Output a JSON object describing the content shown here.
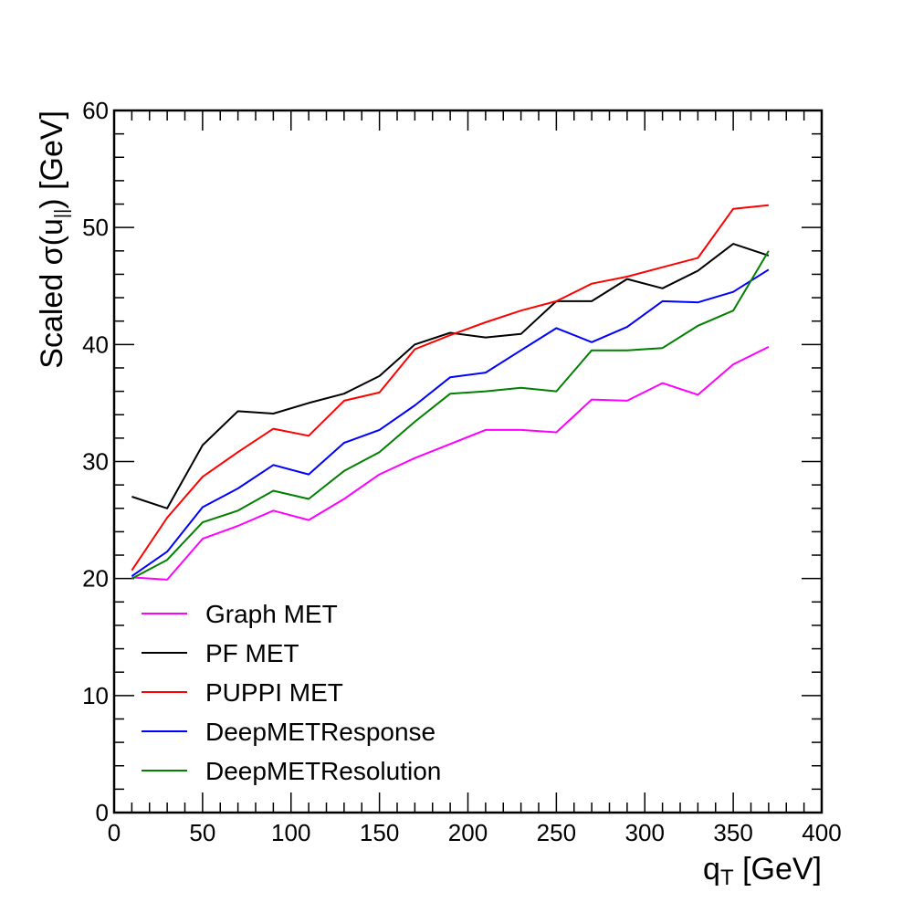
{
  "chart_data": {
    "type": "line",
    "xlabel": "q",
    "xlabel_sub": "T",
    "xlabel_unit": " [GeV]",
    "ylabel": "Scaled σ(u",
    "ylabel_sub": "||",
    "ylabel_unit": ") [GeV]",
    "xlim": [
      0,
      400
    ],
    "ylim": [
      0,
      60
    ],
    "xticks": [
      0,
      50,
      100,
      150,
      200,
      250,
      300,
      350,
      400
    ],
    "yticks": [
      0,
      10,
      20,
      30,
      40,
      50,
      60
    ],
    "legend_position": "bottom-left",
    "grid": false,
    "x": [
      10,
      30,
      50,
      70,
      90,
      110,
      130,
      150,
      170,
      190,
      210,
      230,
      250,
      270,
      290,
      310,
      330,
      350,
      370
    ],
    "series": [
      {
        "name": "Graph MET",
        "color": "#ff00ff",
        "values": [
          20.1,
          19.9,
          23.4,
          24.5,
          25.8,
          25.0,
          26.8,
          28.9,
          30.3,
          31.5,
          32.7,
          32.7,
          32.5,
          35.3,
          35.2,
          36.7,
          35.7,
          38.3,
          39.8
        ]
      },
      {
        "name": "PF MET",
        "color": "#000000",
        "values": [
          27.0,
          26.0,
          31.4,
          34.3,
          34.1,
          35.0,
          35.8,
          37.3,
          40.0,
          41.0,
          40.6,
          40.9,
          43.7,
          43.7,
          45.6,
          44.8,
          46.3,
          48.6,
          47.6
        ]
      },
      {
        "name": "PUPPI MET",
        "color": "#ff0000",
        "values": [
          20.7,
          25.2,
          28.7,
          30.8,
          32.8,
          32.2,
          35.2,
          35.9,
          39.6,
          40.8,
          41.9,
          42.9,
          43.7,
          45.2,
          45.8,
          46.6,
          47.4,
          51.6,
          51.9
        ]
      },
      {
        "name": "DeepMETResponse",
        "color": "#0000ff",
        "values": [
          20.2,
          22.3,
          26.1,
          27.7,
          29.7,
          28.9,
          31.6,
          32.7,
          34.8,
          37.2,
          37.6,
          39.5,
          41.4,
          40.2,
          41.5,
          43.7,
          43.6,
          44.5,
          46.4
        ]
      },
      {
        "name": "DeepMETResolution",
        "color": "#008000",
        "values": [
          20.0,
          21.6,
          24.8,
          25.8,
          27.5,
          26.8,
          29.2,
          30.8,
          33.4,
          35.8,
          36.0,
          36.3,
          36.0,
          39.5,
          39.5,
          39.7,
          41.6,
          42.9,
          48.0
        ]
      }
    ]
  }
}
